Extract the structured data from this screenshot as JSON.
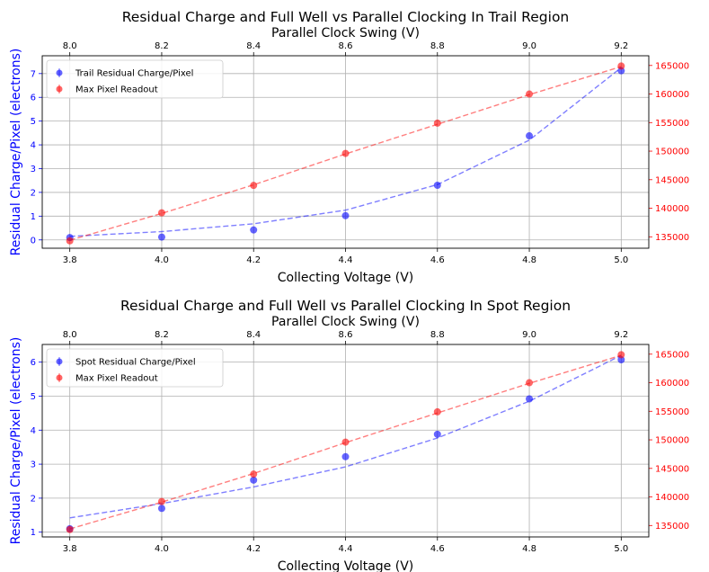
{
  "chart_data": [
    {
      "type": "scatter",
      "title": "Residual Charge and Full Well vs Parallel Clocking In Trail Region",
      "xlabel": "Collecting Voltage (V)",
      "x2label": "Parallel Clock Swing (V)",
      "ylabel": "Residual Charge/Pixel (electrons)",
      "y2label": "Max Pixel Readout (electrons)",
      "x": [
        3.8,
        4.0,
        4.2,
        4.4,
        4.6,
        4.8,
        5.0
      ],
      "x2": [
        8.0,
        8.2,
        8.4,
        8.6,
        8.8,
        9.0,
        9.2
      ],
      "xlim": [
        3.74,
        5.06
      ],
      "xticks": [
        "3.8",
        "4.0",
        "4.2",
        "4.4",
        "4.6",
        "4.8",
        "5.0"
      ],
      "x2ticks": [
        "8.0",
        "8.2",
        "8.4",
        "8.6",
        "8.8",
        "9.0",
        "9.2"
      ],
      "ylim": [
        -0.35,
        7.75
      ],
      "yticks": [
        "0",
        "1",
        "2",
        "3",
        "4",
        "5",
        "6",
        "7"
      ],
      "y2lim": [
        133000,
        166700
      ],
      "y2ticks": [
        "135000",
        "140000",
        "145000",
        "150000",
        "155000",
        "160000",
        "165000"
      ],
      "grid": true,
      "legend_position": "top-left",
      "series": [
        {
          "name": "Trail Residual Charge/Pixel",
          "axis": "left",
          "color": "#0000ff",
          "values": [
            0.1,
            0.12,
            0.42,
            1.02,
            2.3,
            4.38,
            7.12
          ],
          "fit": [
            0.15,
            0.35,
            0.68,
            1.25,
            2.33,
            4.2,
            7.25
          ]
        },
        {
          "name": "Max Pixel Readout",
          "axis": "right",
          "color": "#ff0000",
          "values": [
            134300,
            139200,
            144000,
            149600,
            154900,
            160000,
            164900
          ],
          "fit": [
            134400,
            139100,
            144100,
            149500,
            154700,
            159900,
            164800
          ]
        }
      ]
    },
    {
      "type": "scatter",
      "title": "Residual Charge and Full Well vs Parallel Clocking In Spot Region",
      "xlabel": "Collecting Voltage (V)",
      "x2label": "Parallel Clock Swing (V)",
      "ylabel": "Residual Charge/Pixel (electrons)",
      "y2label": "Max Pixel Readout (electrons)",
      "x": [
        3.8,
        4.0,
        4.2,
        4.4,
        4.6,
        4.8,
        5.0
      ],
      "x2": [
        8.0,
        8.2,
        8.4,
        8.6,
        8.8,
        9.0,
        9.2
      ],
      "xlim": [
        3.74,
        5.06
      ],
      "xticks": [
        "3.8",
        "4.0",
        "4.2",
        "4.4",
        "4.6",
        "4.8",
        "5.0"
      ],
      "x2ticks": [
        "8.0",
        "8.2",
        "8.4",
        "8.6",
        "8.8",
        "9.0",
        "9.2"
      ],
      "ylim": [
        0.86,
        6.52
      ],
      "yticks": [
        "1",
        "2",
        "3",
        "4",
        "5",
        "6"
      ],
      "y2lim": [
        133000,
        166700
      ],
      "y2ticks": [
        "135000",
        "140000",
        "145000",
        "150000",
        "155000",
        "160000",
        "165000"
      ],
      "grid": true,
      "legend_position": "top-left",
      "series": [
        {
          "name": "Spot Residual Charge/Pixel",
          "axis": "left",
          "color": "#0000ff",
          "values": [
            1.1,
            1.7,
            2.53,
            3.22,
            3.88,
            4.92,
            6.07
          ],
          "fit": [
            1.42,
            1.84,
            2.33,
            2.92,
            3.77,
            4.85,
            6.2
          ]
        },
        {
          "name": "Max Pixel Readout",
          "axis": "right",
          "color": "#ff0000",
          "values": [
            134300,
            139200,
            144000,
            149600,
            154900,
            160000,
            164900
          ],
          "fit": [
            134400,
            139100,
            144100,
            149500,
            154700,
            159900,
            164800
          ]
        }
      ]
    }
  ]
}
